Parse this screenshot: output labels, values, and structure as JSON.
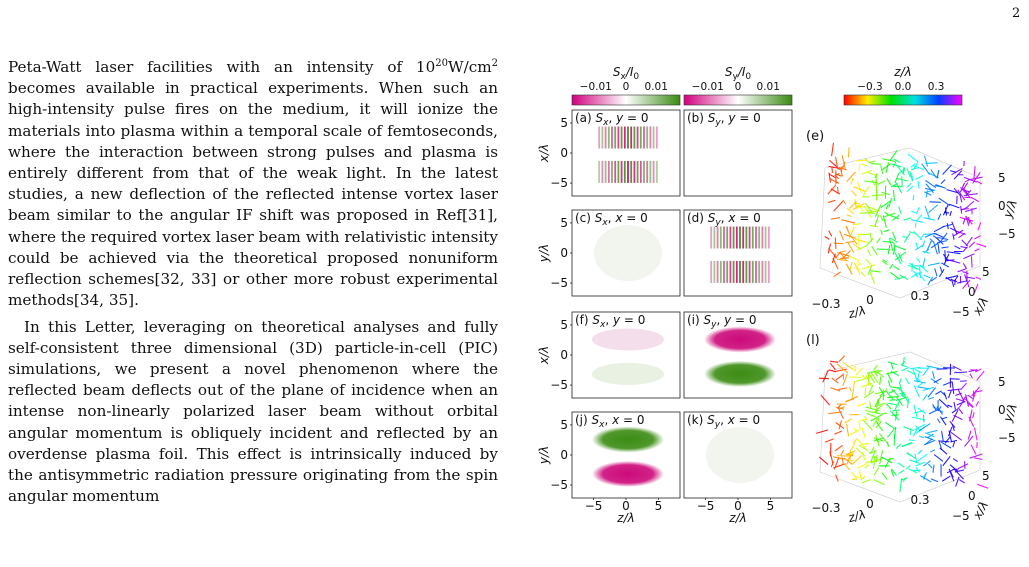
{
  "page": {
    "number": "2"
  },
  "text": {
    "p1_line1_before": "Peta-Watt laser facilities with an intensity of 10",
    "p1_sup1": "20",
    "p1_unit": "W/cm",
    "p1_sup2": "2",
    "p1_rest": "becomes available in practical experiments. When such an high-intensity pulse fires on the medium, it will ionize the materials into plasma within a temporal scale of femtoseconds, where the interaction between strong pulses and plasma is entirely different from that of the weak light. In the latest studies, a new deflection of the reflected intense vortex laser beam similar to the angular IF shift was proposed in Ref[31], where the required vortex laser beam with relativistic intensity could be achieved via the theoretical proposed nonuniform reflection schemes[32, 33] or other more robust experimental methods[34, 35].",
    "p2": "In this Letter, leveraging on theoretical analyses and fully self-consistent three dimensional (3D) particle-in-cell (PIC) simulations, we present a novel phenomenon where the reflected beam deflects out of the plane of incidence when an intense non-linearly polarized laser beam without orbital angular momentum is obliquely incident and reflected by an overdense plasma foil. This effect is intrinsically induced by the antisymmetric radiation pressure originating from the spin angular momentum"
  },
  "figure": {
    "colorbars": [
      {
        "title": "S_x/I_0",
        "ticks": [
          "−0.01",
          "0",
          "0.01"
        ],
        "colors": [
          "#d1007d",
          "#ffffff",
          "#3a8a12"
        ]
      },
      {
        "title": "S_y/I_0",
        "ticks": [
          "−0.01",
          "0",
          "0.01"
        ],
        "colors": [
          "#d1007d",
          "#ffffff",
          "#3a8a12"
        ]
      },
      {
        "title": "z/λ",
        "ticks": [
          "−0.3",
          "0.0",
          "0.3"
        ],
        "colors": [
          "#ff0000",
          "#ffee00",
          "#00e000",
          "#00e0e0",
          "#0040ff",
          "#ff00ff"
        ]
      }
    ],
    "panels": [
      {
        "label": "(a) S_x, y = 0",
        "pattern": "stripes",
        "top": "green",
        "bottom": "magenta"
      },
      {
        "label": "(b) S_y, y = 0",
        "pattern": "blank"
      },
      {
        "label": "(c) S_x, x = 0",
        "pattern": "faint"
      },
      {
        "label": "(d) S_y, x = 0",
        "pattern": "stripes",
        "top": "green",
        "bottom": "green"
      },
      {
        "label": "(f) S_x, y = 0",
        "pattern": "faint-pink"
      },
      {
        "label": "(i) S_y, y = 0",
        "pattern": "solid",
        "top": "magenta",
        "bottom": "green"
      },
      {
        "label": "(j) S_x, x = 0",
        "pattern": "solid",
        "top": "green",
        "bottom": "magenta"
      },
      {
        "label": "(k) S_y, x = 0",
        "pattern": "faint"
      }
    ],
    "ylabels": [
      "x/λ",
      "y/λ",
      "x/λ",
      "y/λ"
    ],
    "yticks": [
      "5",
      "0",
      "−5"
    ],
    "xticks": [
      "−5",
      "0",
      "5"
    ],
    "xlabel": "z/λ",
    "plots3d": [
      {
        "label": "(e)",
        "z_ticks": [
          "−0.3",
          "0",
          "0.3"
        ],
        "z_label": "z/λ",
        "x_ticks": [
          "0",
          "−5"
        ],
        "x_label": "x/λ",
        "y_ticks": [
          "5",
          "0",
          "−5"
        ],
        "y_label": "y/λ",
        "extra_tick": "5"
      },
      {
        "label": "(l)",
        "z_ticks": [
          "−0.3",
          "0",
          "0.3"
        ],
        "z_label": "z/λ",
        "x_ticks": [
          "0",
          "−5"
        ],
        "x_label": "x/λ",
        "y_ticks": [
          "5",
          "0",
          "−5"
        ],
        "y_label": "y/λ",
        "extra_tick": "5"
      }
    ]
  }
}
